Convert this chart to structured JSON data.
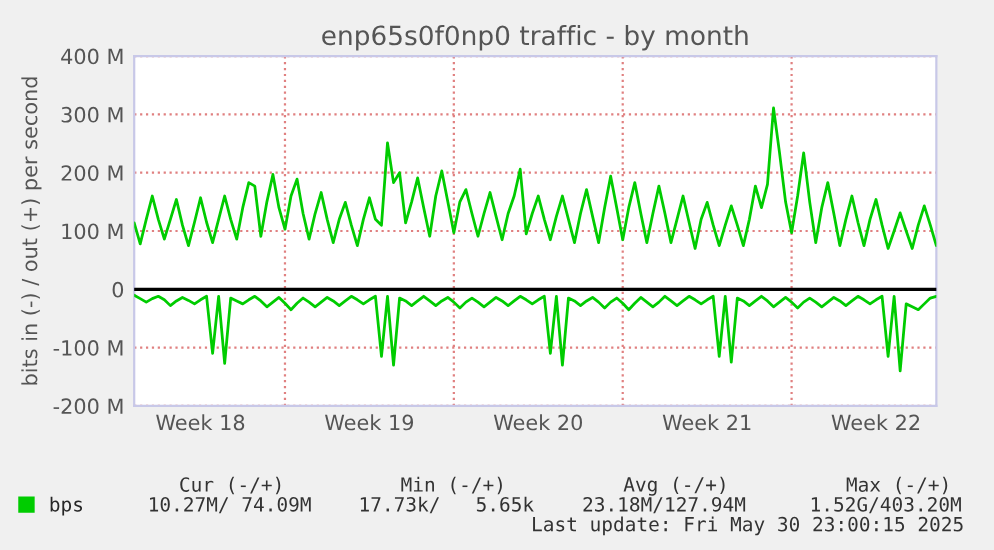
{
  "chart_data": {
    "type": "line",
    "title": "enp65s0f0np0 traffic - by month",
    "ylabel": "bits in (-) / out (+) per second",
    "categories": [
      null,
      null,
      null,
      null,
      null,
      null,
      null,
      null,
      null,
      null,
      null,
      "Week 18",
      null,
      null,
      null,
      null,
      null,
      null,
      null,
      null,
      null,
      null,
      null,
      null,
      null,
      null,
      null,
      null,
      null,
      null,
      null,
      null,
      null,
      null,
      null,
      null,
      null,
      null,
      null,
      "Week 19",
      null,
      null,
      null,
      null,
      null,
      null,
      null,
      null,
      null,
      null,
      null,
      null,
      null,
      null,
      null,
      null,
      null,
      null,
      null,
      null,
      null,
      null,
      null,
      null,
      null,
      null,
      null,
      "Week 20",
      null,
      null,
      null,
      null,
      null,
      null,
      null,
      null,
      null,
      null,
      null,
      null,
      null,
      null,
      null,
      null,
      null,
      null,
      null,
      null,
      null,
      null,
      null,
      null,
      null,
      null,
      null,
      "Week 21",
      null,
      null,
      null,
      null,
      null,
      null,
      null,
      null,
      null,
      null,
      null,
      null,
      null,
      null,
      null,
      null,
      null,
      null,
      null,
      null,
      null,
      null,
      null,
      null,
      null,
      null,
      null,
      "Week 22",
      null,
      null,
      null,
      null,
      null,
      null,
      null,
      null,
      null,
      null
    ],
    "ylim": [
      -200,
      400
    ],
    "yticks": [
      {
        "value": -200,
        "label": "-200 M"
      },
      {
        "value": -100,
        "label": "-100 M"
      },
      0,
      {
        "value": 100,
        "label": "100 M"
      },
      {
        "value": 200,
        "label": "200 M"
      },
      {
        "value": 300,
        "label": "300 M"
      },
      {
        "value": 400,
        "label": "400 M"
      }
    ],
    "grid": true,
    "legend": "bottom left",
    "marker": "none",
    "line_style": "solid",
    "ref_lines": [
      {
        "axis": "y",
        "value": 0,
        "color": "#000000"
      }
    ],
    "series": [
      {
        "name": "bps",
        "color": "#00cc00",
        "values": [
          114,
          78,
          120,
          160,
          120,
          86,
          120,
          154,
          110,
          75,
          115,
          157,
          115,
          80,
          120,
          160,
          120,
          86,
          140,
          183,
          177,
          91,
          150,
          197,
          140,
          103,
          160,
          189,
          130,
          86,
          130,
          166,
          120,
          80,
          120,
          149,
          110,
          75,
          120,
          157,
          120,
          110,
          251,
          183,
          200,
          114,
          150,
          191,
          140,
          91,
          160,
          203,
          150,
          97,
          150,
          171,
          130,
          91,
          130,
          166,
          125,
          85,
          130,
          160,
          206,
          95,
          130,
          160,
          120,
          85,
          125,
          160,
          120,
          80,
          130,
          171,
          125,
          80,
          140,
          194,
          140,
          85,
          140,
          183,
          130,
          80,
          130,
          177,
          130,
          80,
          120,
          160,
          115,
          70,
          120,
          149,
          110,
          75,
          110,
          143,
          110,
          75,
          120,
          177,
          140,
          180,
          311,
          234,
          150,
          97,
          160,
          234,
          150,
          80,
          140,
          183,
          130,
          75,
          120,
          160,
          115,
          75,
          120,
          154,
          110,
          70,
          100,
          131,
          100,
          70,
          110,
          143,
          110,
          75
        ]
      },
      {
        "color": "#00cc00",
        "values": [
          -10,
          -16,
          -22,
          -16,
          -12,
          -18,
          -28,
          -20,
          -14,
          -19,
          -25,
          -18,
          -12,
          -110,
          -12,
          -127,
          -15,
          -20,
          -25,
          -18,
          -12,
          -20,
          -30,
          -22,
          -14,
          -24,
          -35,
          -24,
          -15,
          -22,
          -30,
          -22,
          -14,
          -20,
          -28,
          -20,
          -12,
          -18,
          -25,
          -18,
          -12,
          -115,
          -12,
          -130,
          -15,
          -20,
          -28,
          -20,
          -12,
          -20,
          -28,
          -20,
          -14,
          -22,
          -32,
          -22,
          -15,
          -22,
          -30,
          -22,
          -14,
          -20,
          -28,
          -20,
          -12,
          -18,
          -25,
          -18,
          -12,
          -110,
          -12,
          -130,
          -15,
          -20,
          -28,
          -20,
          -14,
          -22,
          -32,
          -22,
          -15,
          -24,
          -35,
          -24,
          -14,
          -22,
          -30,
          -22,
          -12,
          -20,
          -28,
          -20,
          -12,
          -18,
          -25,
          -18,
          -12,
          -115,
          -12,
          -125,
          -15,
          -20,
          -28,
          -20,
          -12,
          -20,
          -30,
          -22,
          -14,
          -22,
          -32,
          -22,
          -15,
          -22,
          -30,
          -22,
          -14,
          -20,
          -28,
          -20,
          -12,
          -18,
          -25,
          -18,
          -12,
          -115,
          -12,
          -140,
          -25,
          -30,
          -35,
          -25,
          -15,
          -12
        ]
      }
    ],
    "annotations": [
      "Cur (-/+)",
      "Min (-/+)",
      "Avg (-/+)",
      "Max (-/+)",
      "10.27M/ 74.09M",
      "17.73k/   5.65k",
      "23.18M/127.94M",
      "1.52G/403.20M",
      "Last update: Fri May 30 23:00:15 2025"
    ]
  }
}
